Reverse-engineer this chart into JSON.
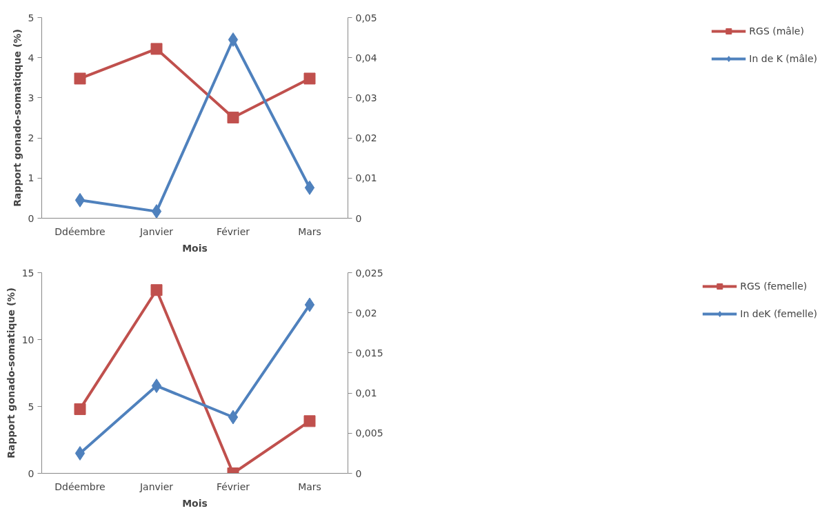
{
  "chart_data": [
    {
      "type": "line",
      "xlabel": "Mois",
      "ylabel": "Rapport gonado-somatiqque (%)",
      "categories": [
        "Ddéembre",
        "Janvier",
        "Février",
        "Mars"
      ],
      "ylim": [
        0,
        5
      ],
      "yticks": [
        0,
        1,
        2,
        3,
        4,
        5
      ],
      "y2lim": [
        0,
        0.05
      ],
      "y2ticks": [
        {
          "value": 0,
          "label": "0"
        },
        {
          "value": 0.01,
          "label": "0,01"
        },
        {
          "value": 0.02,
          "label": "0,02"
        },
        {
          "value": 0.03,
          "label": "0,03"
        },
        {
          "value": 0.04,
          "label": "0,04"
        },
        {
          "value": 0.05,
          "label": "0,05"
        }
      ],
      "legend": "right",
      "grid": false,
      "series": [
        {
          "name": "RGS (mâle)",
          "color": "#c0504d",
          "marker": "square",
          "values": [
            3.48,
            4.22,
            2.51,
            3.48
          ]
        },
        {
          "name": "In de K (mâle)",
          "color": "#4f81bd",
          "marker": "diamond",
          "axis": "y2",
          "values": [
            0.0045,
            0.0017,
            0.0445,
            0.0076
          ]
        }
      ]
    },
    {
      "type": "line",
      "xlabel": "Mois",
      "ylabel": "Rapport gonado-somatique (%)",
      "categories": [
        "Ddéembre",
        "Janvier",
        "Février",
        "Mars"
      ],
      "ylim": [
        0,
        15
      ],
      "yticks": [
        0,
        5,
        10,
        15
      ],
      "y2lim": [
        0,
        0.025
      ],
      "y2ticks": [
        {
          "value": 0,
          "label": "0"
        },
        {
          "value": 0.005,
          "label": "0,005"
        },
        {
          "value": 0.01,
          "label": "0,01"
        },
        {
          "value": 0.015,
          "label": "0,015"
        },
        {
          "value": 0.02,
          "label": "0,02"
        },
        {
          "value": 0.025,
          "label": "0,025"
        }
      ],
      "legend": "right",
      "grid": false,
      "series": [
        {
          "name": "RGS (femelle)",
          "color": "#c0504d",
          "marker": "square",
          "values": [
            4.8,
            13.7,
            0,
            3.9
          ]
        },
        {
          "name": "In deK (femelle)",
          "color": "#4f81bd",
          "marker": "diamond",
          "axis": "y2",
          "values": [
            0.0025,
            0.0109,
            0.007,
            0.021
          ]
        }
      ]
    }
  ]
}
